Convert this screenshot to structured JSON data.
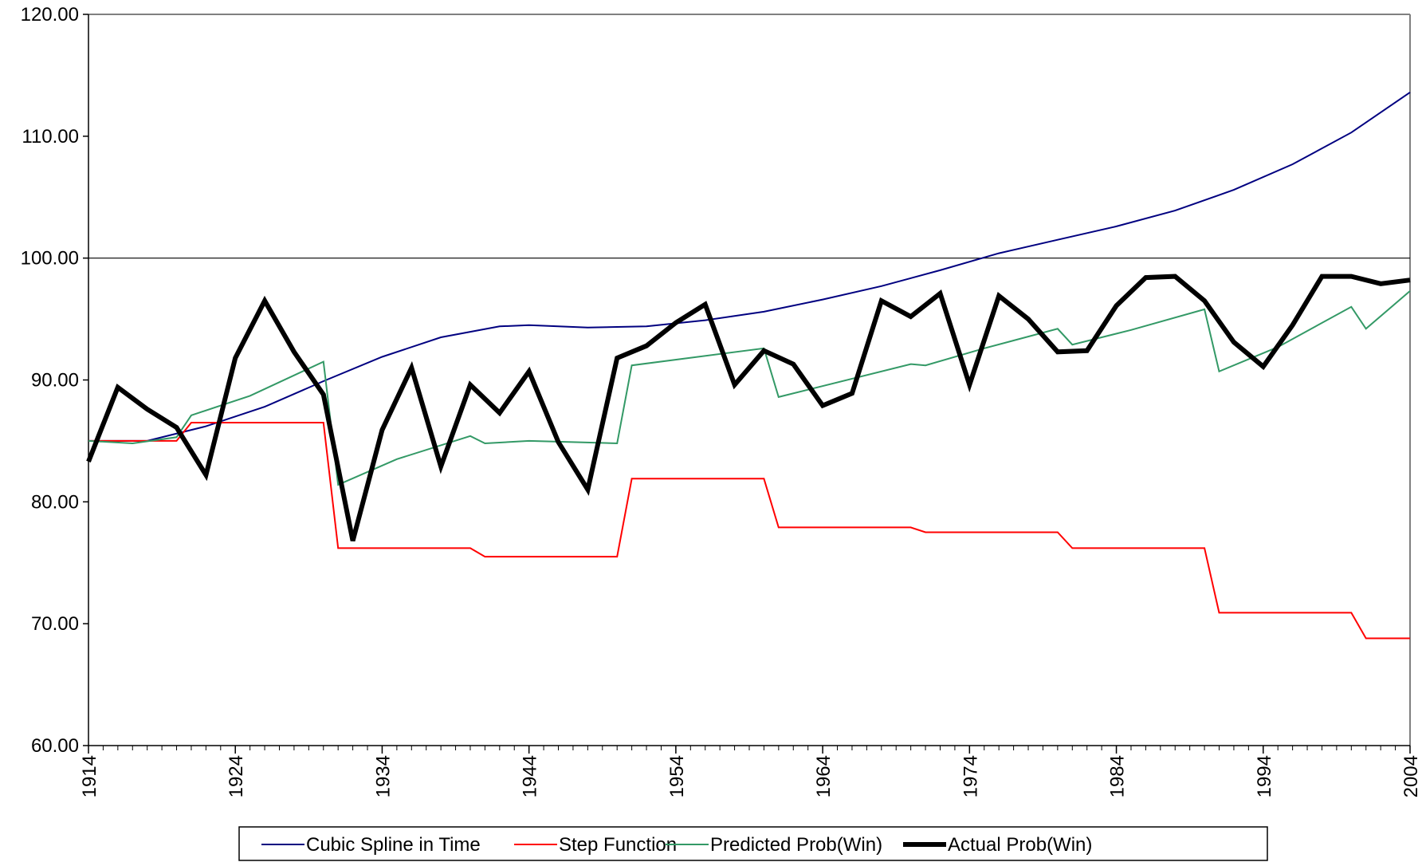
{
  "chart_data": {
    "type": "line",
    "xlim": [
      1914,
      2004
    ],
    "xticks": [
      1914,
      1924,
      1934,
      1944,
      1954,
      1964,
      1974,
      1984,
      1994,
      2004
    ],
    "xminorticks": [
      1914,
      1915,
      1916,
      1917,
      1918,
      1919,
      1920,
      1921,
      1922,
      1923,
      1924,
      1925,
      1926,
      1927,
      1928,
      1929,
      1930,
      1931,
      1932,
      1933,
      1934,
      1935,
      1936,
      1937,
      1938,
      1939,
      1940,
      1941,
      1942,
      1943,
      1944,
      1945,
      1946,
      1947,
      1948,
      1949,
      1950,
      1951,
      1952,
      1953,
      1954,
      1955,
      1956,
      1957,
      1958,
      1959,
      1960,
      1961,
      1962,
      1963,
      1964,
      1965,
      1966,
      1967,
      1968,
      1969,
      1970,
      1971,
      1972,
      1973,
      1974,
      1975,
      1976,
      1977,
      1978,
      1979,
      1980,
      1981,
      1982,
      1983,
      1984,
      1985,
      1986,
      1987,
      1988,
      1989,
      1990,
      1991,
      1992,
      1993,
      1994,
      1995,
      1996,
      1997,
      1998,
      1999,
      2000,
      2001,
      2002,
      2003,
      2004
    ],
    "ylim": [
      60,
      120
    ],
    "yticks": [
      {
        "value": 60,
        "label": "60.00"
      },
      {
        "value": 70,
        "label": "70.00"
      },
      {
        "value": 80,
        "label": "80.00"
      },
      {
        "value": 90,
        "label": "90.00"
      },
      {
        "value": 100,
        "label": "100.00"
      },
      {
        "value": 110,
        "label": "110.00"
      },
      {
        "value": 120,
        "label": "120.00"
      }
    ],
    "reference_line": 100,
    "legend": "bottom",
    "series": [
      {
        "name": "Cubic Spline in Time",
        "color": "#000080",
        "width": 2,
        "x": [
          1914,
          1918,
          1922,
          1926,
          1930,
          1934,
          1938,
          1942,
          1944,
          1948,
          1952,
          1956,
          1960,
          1964,
          1968,
          1972,
          1976,
          1980,
          1984,
          1988,
          1992,
          1996,
          2000,
          2004
        ],
        "values": [
          85.0,
          85.0,
          86.2,
          87.8,
          89.9,
          91.9,
          93.5,
          94.4,
          94.5,
          94.3,
          94.4,
          94.9,
          95.6,
          96.6,
          97.7,
          99.0,
          100.4,
          101.5,
          102.6,
          103.9,
          105.6,
          107.7,
          110.3,
          113.6
        ]
      },
      {
        "name": "Step Function",
        "color": "#ff0000",
        "width": 2,
        "x": [
          1914,
          1920,
          1921,
          1930,
          1931,
          1940,
          1941,
          1950,
          1951,
          1960,
          1961,
          1970,
          1971,
          1980,
          1981,
          1990,
          1991,
          2000,
          2001,
          2004
        ],
        "values": [
          85.0,
          85.0,
          86.5,
          86.5,
          76.2,
          76.2,
          75.5,
          75.5,
          81.9,
          81.9,
          77.9,
          77.9,
          77.5,
          77.5,
          76.2,
          76.2,
          70.9,
          70.9,
          68.8,
          68.8
        ]
      },
      {
        "name": "Predicted Prob(Win)",
        "color": "#339966",
        "width": 2,
        "x": [
          1914,
          1917,
          1920,
          1921,
          1925,
          1930,
          1931,
          1935,
          1940,
          1941,
          1944,
          1950,
          1951,
          1960,
          1961,
          1970,
          1971,
          1975,
          1980,
          1981,
          1985,
          1990,
          1991,
          1995,
          2000,
          2001,
          2004
        ],
        "values": [
          85.0,
          84.8,
          85.3,
          87.1,
          88.7,
          91.5,
          81.4,
          83.5,
          85.4,
          84.8,
          85.0,
          84.8,
          91.2,
          92.6,
          88.6,
          91.3,
          91.2,
          92.6,
          94.2,
          92.9,
          94.1,
          95.8,
          90.7,
          92.7,
          96.0,
          94.2,
          97.3
        ]
      },
      {
        "name": "Actual Prob(Win)",
        "color": "#000000",
        "width": 6,
        "x": [
          1914,
          1916,
          1918,
          1920,
          1922,
          1924,
          1926,
          1928,
          1930,
          1932,
          1934,
          1936,
          1938,
          1940,
          1942,
          1944,
          1946,
          1948,
          1950,
          1952,
          1954,
          1956,
          1958,
          1960,
          1962,
          1964,
          1966,
          1968,
          1970,
          1972,
          1974,
          1976,
          1978,
          1980,
          1982,
          1984,
          1986,
          1988,
          1990,
          1992,
          1994,
          1996,
          1998,
          2000,
          2002,
          2004
        ],
        "values": [
          83.3,
          89.4,
          87.6,
          86.1,
          82.2,
          91.8,
          96.5,
          92.3,
          88.8,
          76.8,
          85.9,
          91.0,
          82.9,
          89.6,
          87.3,
          90.7,
          84.9,
          81.0,
          91.8,
          92.8,
          94.7,
          96.2,
          89.6,
          92.4,
          91.3,
          87.9,
          88.9,
          96.5,
          95.2,
          97.1,
          89.6,
          96.9,
          95.0,
          92.3,
          92.4,
          96.1,
          98.4,
          98.5,
          96.5,
          93.1,
          91.1,
          94.5,
          98.5,
          98.5,
          97.9,
          98.2
        ]
      }
    ]
  }
}
